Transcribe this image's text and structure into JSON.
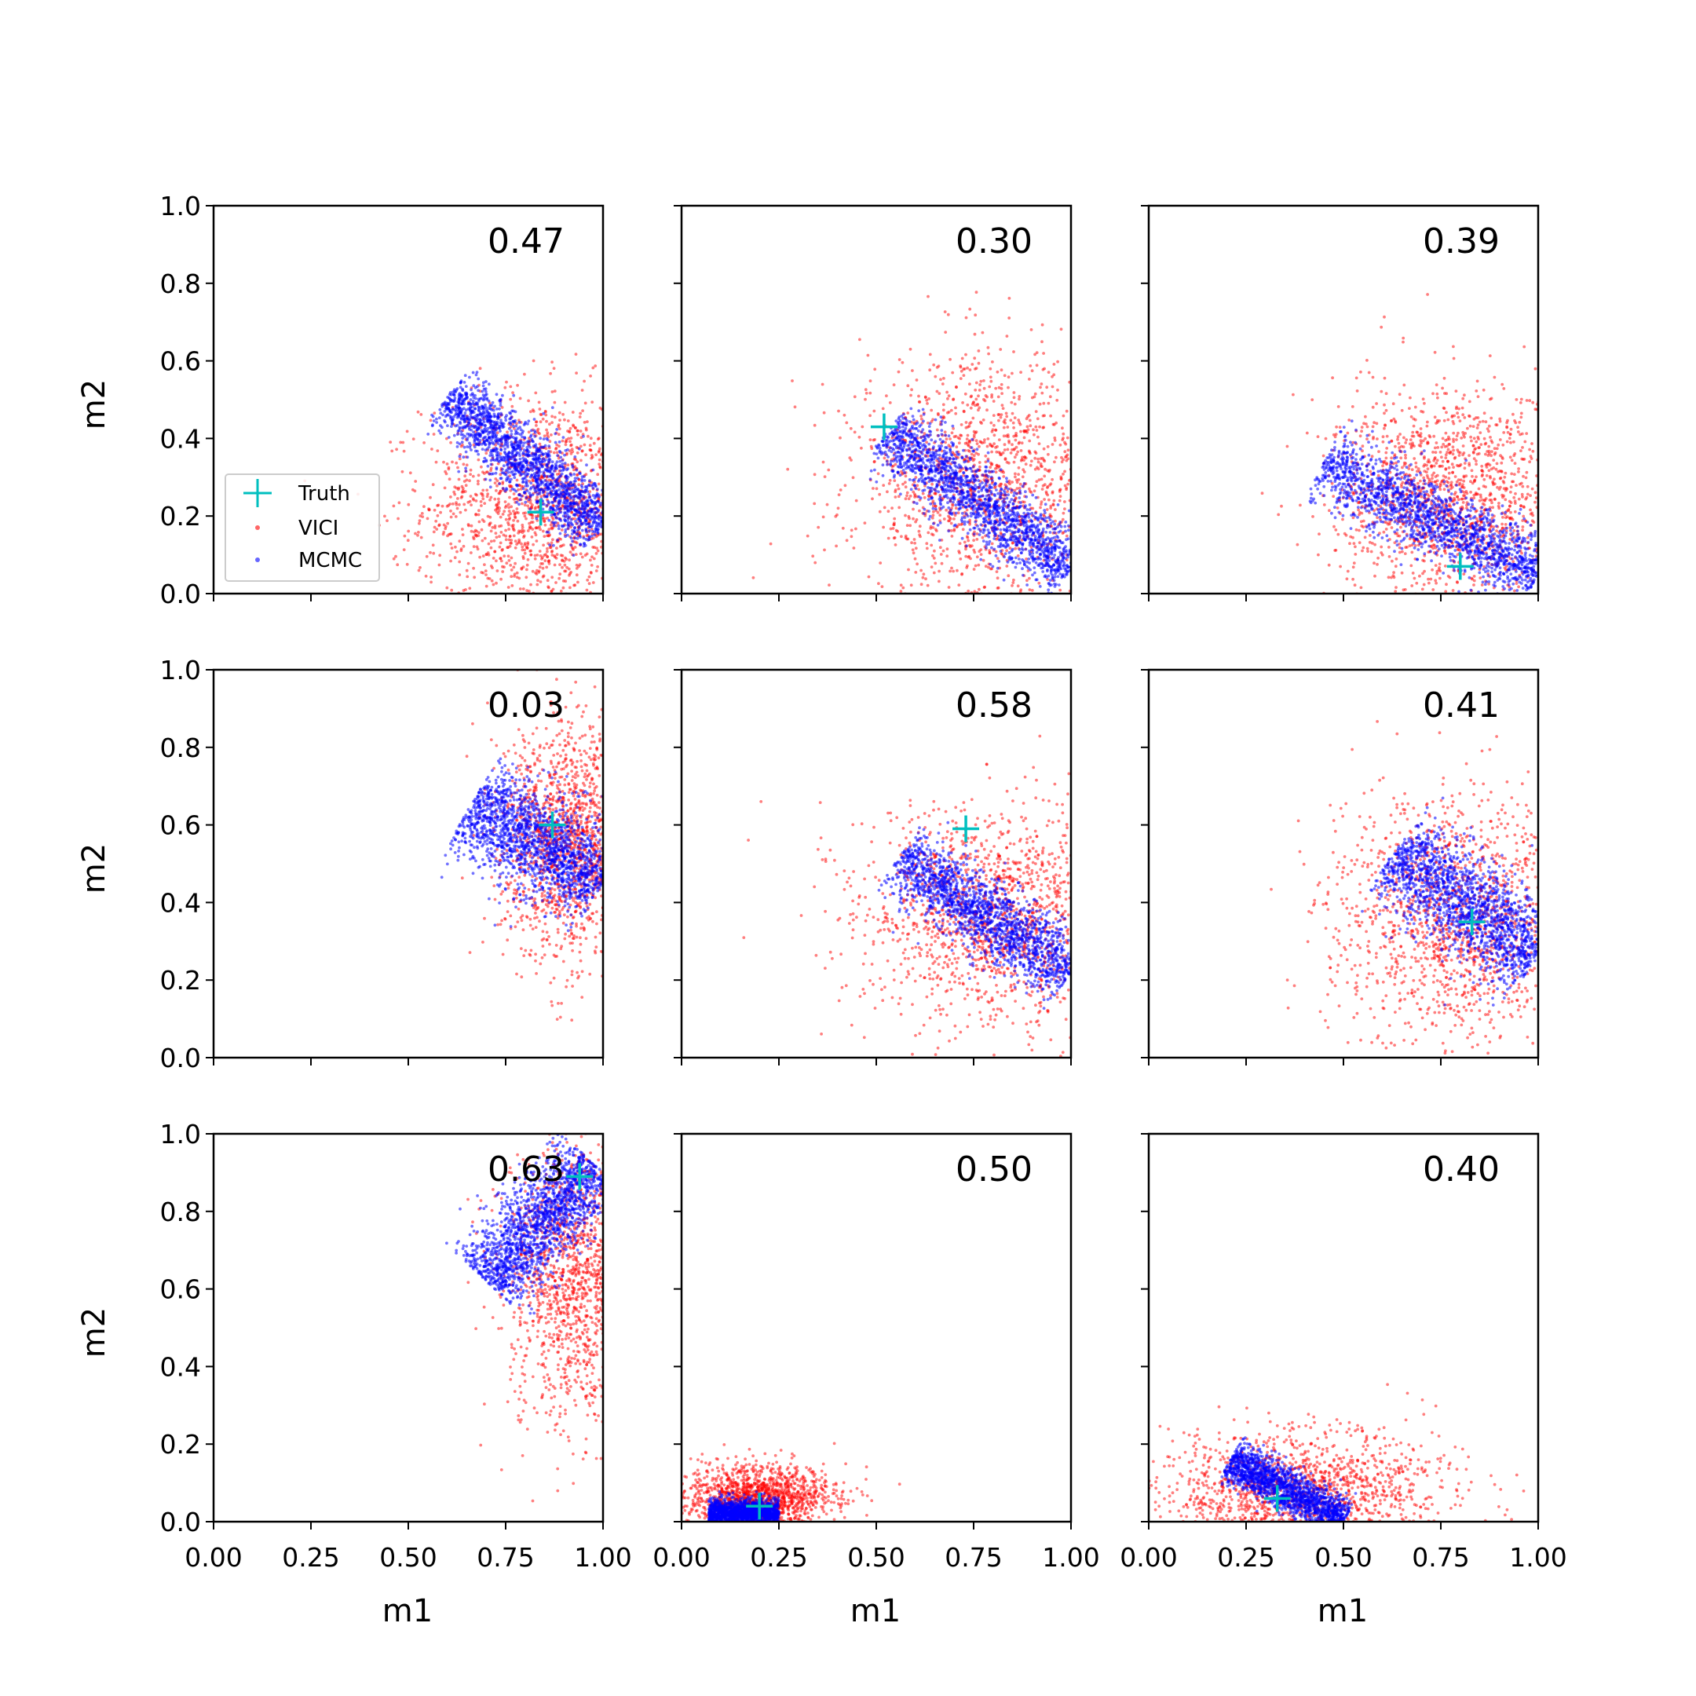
{
  "figure": {
    "x_label": "m1",
    "y_label": "m2",
    "xlim": [
      0,
      1
    ],
    "ylim": [
      0,
      1
    ],
    "x_ticks": [
      "0.00",
      "0.25",
      "0.50",
      "0.75",
      "1.00"
    ],
    "y_ticks": [
      "0.0",
      "0.2",
      "0.4",
      "0.6",
      "0.8",
      "1.0"
    ],
    "legend": {
      "placement": "lower-left of first panel",
      "entries": [
        {
          "label": "Truth",
          "color": "#00bfbf",
          "marker": "plus"
        },
        {
          "label": "VICI",
          "color": "#ff0000",
          "marker": "dot"
        },
        {
          "label": "MCMC",
          "color": "#0000ff",
          "marker": "dot"
        }
      ]
    }
  },
  "chart_data": [
    {
      "type": "scatter",
      "annotation": "0.47",
      "truth": [
        0.84,
        0.21
      ],
      "vici": {
        "spread": [
          0.2,
          0.25
        ],
        "along": [
          0.84,
          0.22
        ],
        "across": [
          0.68,
          0.62
        ],
        "corr": 0
      },
      "mcmc": {
        "band_start": [
          0.6,
          0.51
        ],
        "band_end": [
          1.0,
          0.17
        ],
        "band_width": 0.09
      }
    },
    {
      "type": "scatter",
      "annotation": "0.30",
      "truth": [
        0.52,
        0.43
      ],
      "vici": {
        "spread": [
          0.22,
          0.27
        ],
        "along": [
          0.78,
          0.28
        ],
        "across": [
          0.6,
          0.6
        ],
        "corr": 0
      },
      "mcmc": {
        "band_start": [
          0.53,
          0.42
        ],
        "band_end": [
          1.0,
          0.06
        ],
        "band_width": 0.09
      }
    },
    {
      "type": "scatter",
      "annotation": "0.39",
      "truth": [
        0.8,
        0.07
      ],
      "vici": {
        "spread": [
          0.2,
          0.23
        ],
        "along": [
          0.78,
          0.25
        ],
        "across": [
          0.58,
          0.66
        ],
        "corr": 0
      },
      "mcmc": {
        "band_start": [
          0.45,
          0.34
        ],
        "band_end": [
          1.0,
          0.05
        ],
        "band_width": 0.1
      }
    },
    {
      "type": "scatter",
      "annotation": "0.03",
      "truth": [
        0.87,
        0.6
      ],
      "vici": {
        "spread": [
          0.12,
          0.25
        ],
        "along": [
          0.92,
          0.56
        ],
        "across": [
          0.8,
          0.6
        ],
        "corr": 0
      },
      "mcmc": {
        "band_start": [
          0.66,
          0.65
        ],
        "band_end": [
          1.0,
          0.45
        ],
        "band_width": 0.14
      }
    },
    {
      "type": "scatter",
      "annotation": "0.58",
      "truth": [
        0.73,
        0.59
      ],
      "vici": {
        "spread": [
          0.23,
          0.24
        ],
        "along": [
          0.8,
          0.36
        ],
        "across": [
          0.62,
          0.6
        ],
        "corr": 0
      },
      "mcmc": {
        "band_start": [
          0.56,
          0.52
        ],
        "band_end": [
          1.0,
          0.22
        ],
        "band_width": 0.1
      }
    },
    {
      "type": "scatter",
      "annotation": "0.41",
      "truth": [
        0.83,
        0.35
      ],
      "vici": {
        "spread": [
          0.22,
          0.26
        ],
        "along": [
          0.8,
          0.36
        ],
        "across": [
          0.6,
          0.6
        ],
        "corr": 0
      },
      "mcmc": {
        "band_start": [
          0.63,
          0.53
        ],
        "band_end": [
          1.0,
          0.26
        ],
        "band_width": 0.13
      }
    },
    {
      "type": "scatter",
      "annotation": "0.63",
      "truth": [
        0.94,
        0.89
      ],
      "vici": {
        "spread": [
          0.12,
          0.32
        ],
        "along": [
          0.93,
          0.62
        ],
        "across": [
          0.8,
          0.6
        ],
        "corr": 0
      },
      "mcmc": {
        "band_start": [
          0.7,
          0.62
        ],
        "band_end": [
          0.98,
          0.92
        ],
        "band_width": 0.12
      }
    },
    {
      "type": "scatter",
      "annotation": "0.50",
      "truth": [
        0.2,
        0.04
      ],
      "vici": {
        "spread": [
          0.13,
          0.07
        ],
        "along": [
          0.2,
          0.06
        ],
        "across": [
          0.6,
          0.6
        ],
        "corr": 0
      },
      "mcmc": {
        "band_start": [
          0.07,
          0.02
        ],
        "band_end": [
          0.25,
          0.02
        ],
        "band_width": 0.04
      }
    },
    {
      "type": "scatter",
      "annotation": "0.40",
      "truth": [
        0.33,
        0.06
      ],
      "vici": {
        "spread": [
          0.25,
          0.13
        ],
        "along": [
          0.4,
          0.08
        ],
        "across": [
          0.6,
          0.6
        ],
        "corr": 0
      },
      "mcmc": {
        "band_start": [
          0.21,
          0.16
        ],
        "band_end": [
          0.5,
          0.0
        ],
        "band_width": 0.06
      }
    }
  ]
}
